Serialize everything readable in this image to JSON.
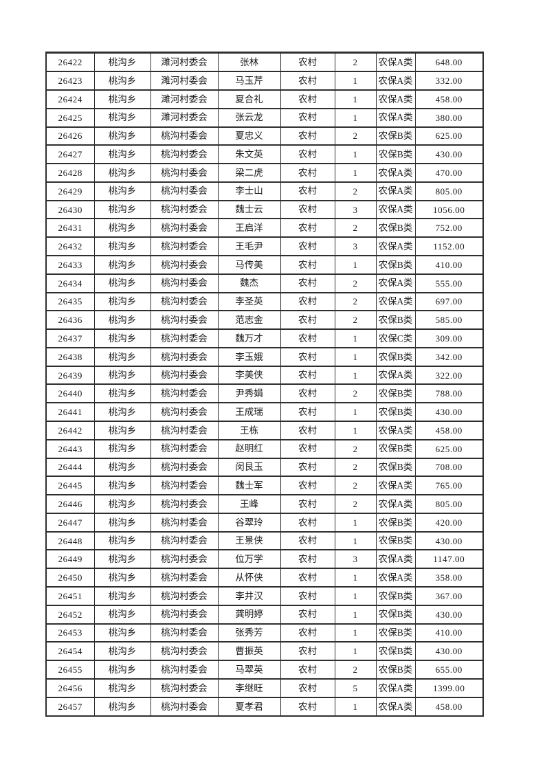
{
  "page": {
    "kind": "printed-table-page",
    "background": "#ffffff"
  },
  "colors": {
    "background": "#ffffff",
    "border": "#2e2e2e",
    "text": "#1a1a1a"
  },
  "table": {
    "row_count": 36,
    "column_count": 8,
    "rows": [
      [
        "26422",
        "桃沟乡",
        "濉河村委会",
        "张林",
        "农村",
        "2",
        "农保A类",
        "648.00"
      ],
      [
        "26423",
        "桃沟乡",
        "濉河村委会",
        "马玉芹",
        "农村",
        "1",
        "农保A类",
        "332.00"
      ],
      [
        "26424",
        "桃沟乡",
        "濉河村委会",
        "夏合礼",
        "农村",
        "1",
        "农保A类",
        "458.00"
      ],
      [
        "26425",
        "桃沟乡",
        "濉河村委会",
        "张云龙",
        "农村",
        "1",
        "农保A类",
        "380.00"
      ],
      [
        "26426",
        "桃沟乡",
        "桃沟村委会",
        "夏忠义",
        "农村",
        "2",
        "农保B类",
        "625.00"
      ],
      [
        "26427",
        "桃沟乡",
        "桃沟村委会",
        "朱文英",
        "农村",
        "1",
        "农保B类",
        "430.00"
      ],
      [
        "26428",
        "桃沟乡",
        "桃沟村委会",
        "梁二虎",
        "农村",
        "1",
        "农保A类",
        "470.00"
      ],
      [
        "26429",
        "桃沟乡",
        "桃沟村委会",
        "李士山",
        "农村",
        "2",
        "农保A类",
        "805.00"
      ],
      [
        "26430",
        "桃沟乡",
        "桃沟村委会",
        "魏士云",
        "农村",
        "3",
        "农保A类",
        "1056.00"
      ],
      [
        "26431",
        "桃沟乡",
        "桃沟村委会",
        "王启洋",
        "农村",
        "2",
        "农保B类",
        "752.00"
      ],
      [
        "26432",
        "桃沟乡",
        "桃沟村委会",
        "王毛尹",
        "农村",
        "3",
        "农保A类",
        "1152.00"
      ],
      [
        "26433",
        "桃沟乡",
        "桃沟村委会",
        "马传美",
        "农村",
        "1",
        "农保B类",
        "410.00"
      ],
      [
        "26434",
        "桃沟乡",
        "桃沟村委会",
        "魏杰",
        "农村",
        "2",
        "农保A类",
        "555.00"
      ],
      [
        "26435",
        "桃沟乡",
        "桃沟村委会",
        "李圣英",
        "农村",
        "2",
        "农保A类",
        "697.00"
      ],
      [
        "26436",
        "桃沟乡",
        "桃沟村委会",
        "范志金",
        "农村",
        "2",
        "农保B类",
        "585.00"
      ],
      [
        "26437",
        "桃沟乡",
        "桃沟村委会",
        "魏万才",
        "农村",
        "1",
        "农保C类",
        "309.00"
      ],
      [
        "26438",
        "桃沟乡",
        "桃沟村委会",
        "李玉娥",
        "农村",
        "1",
        "农保B类",
        "342.00"
      ],
      [
        "26439",
        "桃沟乡",
        "桃沟村委会",
        "李美侠",
        "农村",
        "1",
        "农保A类",
        "322.00"
      ],
      [
        "26440",
        "桃沟乡",
        "桃沟村委会",
        "尹秀娟",
        "农村",
        "2",
        "农保B类",
        "788.00"
      ],
      [
        "26441",
        "桃沟乡",
        "桃沟村委会",
        "王成瑞",
        "农村",
        "1",
        "农保B类",
        "430.00"
      ],
      [
        "26442",
        "桃沟乡",
        "桃沟村委会",
        "王栋",
        "农村",
        "1",
        "农保A类",
        "458.00"
      ],
      [
        "26443",
        "桃沟乡",
        "桃沟村委会",
        "赵明红",
        "农村",
        "2",
        "农保B类",
        "625.00"
      ],
      [
        "26444",
        "桃沟乡",
        "桃沟村委会",
        "闵艮玉",
        "农村",
        "2",
        "农保B类",
        "708.00"
      ],
      [
        "26445",
        "桃沟乡",
        "桃沟村委会",
        "魏士军",
        "农村",
        "2",
        "农保A类",
        "765.00"
      ],
      [
        "26446",
        "桃沟乡",
        "桃沟村委会",
        "王峰",
        "农村",
        "2",
        "农保A类",
        "805.00"
      ],
      [
        "26447",
        "桃沟乡",
        "桃沟村委会",
        "谷翠玲",
        "农村",
        "1",
        "农保B类",
        "420.00"
      ],
      [
        "26448",
        "桃沟乡",
        "桃沟村委会",
        "王景侠",
        "农村",
        "1",
        "农保B类",
        "430.00"
      ],
      [
        "26449",
        "桃沟乡",
        "桃沟村委会",
        "位万学",
        "农村",
        "3",
        "农保A类",
        "1147.00"
      ],
      [
        "26450",
        "桃沟乡",
        "桃沟村委会",
        "从怀侠",
        "农村",
        "1",
        "农保A类",
        "358.00"
      ],
      [
        "26451",
        "桃沟乡",
        "桃沟村委会",
        "李井汉",
        "农村",
        "1",
        "农保B类",
        "367.00"
      ],
      [
        "26452",
        "桃沟乡",
        "桃沟村委会",
        "龚明婷",
        "农村",
        "1",
        "农保B类",
        "430.00"
      ],
      [
        "26453",
        "桃沟乡",
        "桃沟村委会",
        "张秀芳",
        "农村",
        "1",
        "农保B类",
        "410.00"
      ],
      [
        "26454",
        "桃沟乡",
        "桃沟村委会",
        "曹振英",
        "农村",
        "1",
        "农保B类",
        "430.00"
      ],
      [
        "26455",
        "桃沟乡",
        "桃沟村委会",
        "马翠英",
        "农村",
        "2",
        "农保B类",
        "655.00"
      ],
      [
        "26456",
        "桃沟乡",
        "桃沟村委会",
        "李继旺",
        "农村",
        "5",
        "农保A类",
        "1399.00"
      ],
      [
        "26457",
        "桃沟乡",
        "桃沟村委会",
        "夏孝君",
        "农村",
        "1",
        "农保A类",
        "458.00"
      ]
    ]
  }
}
